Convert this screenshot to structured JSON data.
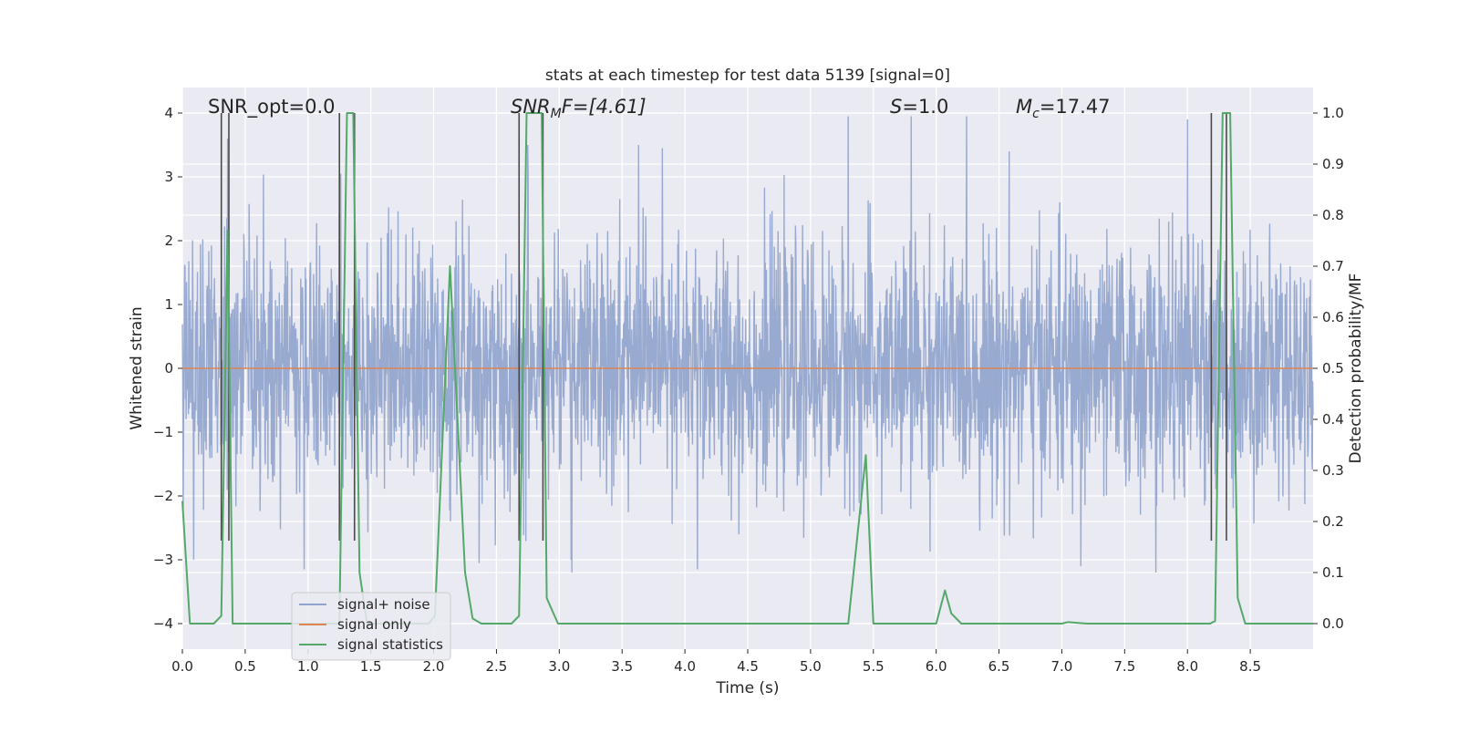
{
  "chart_data": {
    "type": "line",
    "title": "stats at each timestep for test data 5139 [signal=0]",
    "xlabel": "Time (s)",
    "ylabel_left": "Whitened strain",
    "ylabel_right": "Detection probability/MF",
    "xlim": [
      0.0,
      9.0
    ],
    "ylim_left": [
      -4.4,
      4.4
    ],
    "ylim_right": [
      -0.05,
      1.05
    ],
    "x_ticks": [
      "0.0",
      "0.5",
      "1.0",
      "1.5",
      "2.0",
      "2.5",
      "3.0",
      "3.5",
      "4.0",
      "4.5",
      "5.0",
      "5.5",
      "6.0",
      "6.5",
      "7.0",
      "7.5",
      "8.0",
      "8.5"
    ],
    "x_tick_values": [
      0.0,
      0.5,
      1.0,
      1.5,
      2.0,
      2.5,
      3.0,
      3.5,
      4.0,
      4.5,
      5.0,
      5.5,
      6.0,
      6.5,
      7.0,
      7.5,
      8.0,
      8.5
    ],
    "y_ticks_left": [
      "4",
      "3",
      "2",
      "1",
      "0",
      "−1",
      "−2",
      "−3",
      "−4"
    ],
    "y_tick_values_left": [
      4,
      3,
      2,
      1,
      0,
      -1,
      -2,
      -3,
      -4
    ],
    "y_ticks_right": [
      "1.0",
      "0.9",
      "0.8",
      "0.7",
      "0.6",
      "0.5",
      "0.4",
      "0.3",
      "0.2",
      "0.1",
      "0.0"
    ],
    "y_tick_values_right": [
      1.0,
      0.9,
      0.8,
      0.7,
      0.6,
      0.5,
      0.4,
      0.3,
      0.2,
      0.1,
      0.0
    ],
    "annotations": {
      "snr_opt": "SNR_opt=0.0",
      "snr_mf": "SNR",
      "snr_mf_sub": "M",
      "snr_mf_rest": "F=[4.61]",
      "s_label": "S",
      "s_value": "=1.0",
      "mc_label": "M",
      "mc_sub": "c",
      "mc_value": "=17.47"
    },
    "legend": {
      "placement": "lower-left",
      "entries": [
        "signal+ noise",
        "signal only",
        "signal statistics"
      ]
    },
    "colors": {
      "noise": "#8fa3cc",
      "signal_only": "#dd8452",
      "statistics": "#55a868",
      "vlines": "#4a4a4a",
      "background": "#eaeaf2",
      "grid": "#ffffff"
    },
    "series": [
      {
        "name": "signal+ noise",
        "description": "whitened strain noise, roughly N(0,1) with peaks up to ~3.9 and troughs down to ~-3.3",
        "envelope": {
          "typical_max": 2.5,
          "typical_min": -2.3,
          "extreme_max": 3.95,
          "extreme_min": -3.3
        },
        "peaks": [
          {
            "x": 0.36,
            "y": 3.6
          },
          {
            "x": 1.26,
            "y": 3.05
          },
          {
            "x": 2.75,
            "y": 3.5
          },
          {
            "x": 3.63,
            "y": 3.5
          },
          {
            "x": 3.82,
            "y": 3.45
          },
          {
            "x": 5.3,
            "y": 3.95
          },
          {
            "x": 5.8,
            "y": 3.95
          },
          {
            "x": 6.58,
            "y": 3.4
          },
          {
            "x": 8.0,
            "y": 3.9
          }
        ],
        "troughs": [
          {
            "x": 0.09,
            "y": -3.0
          },
          {
            "x": 0.97,
            "y": -3.15
          },
          {
            "x": 3.1,
            "y": -3.2
          },
          {
            "x": 4.1,
            "y": -3.15
          },
          {
            "x": 7.15,
            "y": -3.1
          },
          {
            "x": 7.75,
            "y": -3.2
          }
        ]
      },
      {
        "name": "signal only",
        "x": [
          0.0,
          9.0
        ],
        "y": [
          0.0,
          0.0
        ]
      },
      {
        "name": "signal statistics",
        "axis": "right",
        "x": [
          0.0,
          0.06,
          0.25,
          0.31,
          0.36,
          0.4,
          0.44,
          0.5,
          1.05,
          1.25,
          1.31,
          1.36,
          1.41,
          1.47,
          1.6,
          1.96,
          2.01,
          2.13,
          2.25,
          2.31,
          2.38,
          2.62,
          2.68,
          2.74,
          2.86,
          2.9,
          2.99,
          3.5,
          5.3,
          5.44,
          5.5,
          5.6,
          6.0,
          6.07,
          6.12,
          6.2,
          6.6,
          7.0,
          7.05,
          7.2,
          8.18,
          8.22,
          8.28,
          8.34,
          8.4,
          8.46,
          8.55,
          9.0
        ],
        "y": [
          0.24,
          0.0,
          0.0,
          0.015,
          0.77,
          0.0,
          0.0,
          0.0,
          0.0,
          0.0,
          1.0,
          1.0,
          0.1,
          0.0,
          0.0,
          0.0,
          0.015,
          0.7,
          0.1,
          0.01,
          0.0,
          0.0,
          0.015,
          1.0,
          1.0,
          0.05,
          0.0,
          0.0,
          0.0,
          0.33,
          0.0,
          0.0,
          0.0,
          0.065,
          0.02,
          0.0,
          0.0,
          0.0,
          0.003,
          0.0,
          0.0,
          0.005,
          1.0,
          1.0,
          0.05,
          0.0,
          0.0,
          0.0
        ]
      },
      {
        "name": "detection markers",
        "vlines_x": [
          0.31,
          0.37,
          1.25,
          1.37,
          2.68,
          2.87,
          8.19,
          8.31
        ],
        "vline_range_left": [
          -2.7,
          4.0
        ]
      }
    ]
  }
}
